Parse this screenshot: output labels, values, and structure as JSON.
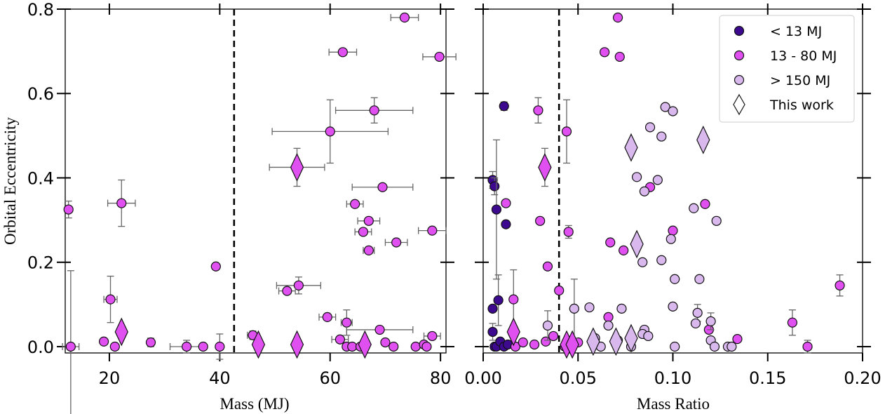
{
  "colors": {
    "lt13": "#3d0a8f",
    "mid": "#e050f0",
    "gt150": "#d9b8ee",
    "this_work": "#e050f0"
  },
  "chart_data": [
    {
      "type": "scatter",
      "xlabel": "Mass (MJ)",
      "ylabel": "Orbital Eccentricity",
      "xlim": [
        12,
        81
      ],
      "ylim": [
        -0.015,
        0.8
      ],
      "xticks": [
        20,
        40,
        60,
        80
      ],
      "yticks": [
        0.0,
        0.2,
        0.4,
        0.6,
        0.8
      ],
      "xtick_labels": [
        "20",
        "40",
        "60",
        "80"
      ],
      "ytick_labels": [
        "0.0",
        "0.2",
        "0.4",
        "0.6",
        "0.8"
      ],
      "vline": 42.6,
      "series": [
        {
          "name": "13 - 80 MJ",
          "marker": "circle",
          "color": "#e050f0",
          "points": [
            {
              "x": 12.6,
              "y": 0.325,
              "ey": 0.02
            },
            {
              "x": 13.0,
              "y": 0.0,
              "ey": 0.18,
              "ex": 1.5
            },
            {
              "x": 22.2,
              "y": 0.34,
              "ey": 0.055,
              "ex": 2.5
            },
            {
              "x": 20.2,
              "y": 0.112,
              "ey": 0.055,
              "ex": 1.2
            },
            {
              "x": 19.0,
              "y": 0.012
            },
            {
              "x": 21.0,
              "y": 0.0
            },
            {
              "x": 27.5,
              "y": 0.01,
              "ey": 0.01
            },
            {
              "x": 34.0,
              "y": 0.0,
              "ex": 3.0,
              "ey": 0.015
            },
            {
              "x": 37.0,
              "y": 0.0
            },
            {
              "x": 40.0,
              "y": 0.0,
              "ey": 0.03
            },
            {
              "x": 39.3,
              "y": 0.19
            },
            {
              "x": 73.5,
              "y": 0.78,
              "ex": 2.5
            },
            {
              "x": 62.3,
              "y": 0.698,
              "ex": 2.5
            },
            {
              "x": 79.8,
              "y": 0.687,
              "ex": 3.0
            },
            {
              "x": 68.0,
              "y": 0.56,
              "ey": 0.03,
              "ex": 7.0
            },
            {
              "x": 60.0,
              "y": 0.51,
              "ey": 0.075,
              "ex": 10.5
            },
            {
              "x": 69.5,
              "y": 0.378,
              "ex": 5.5
            },
            {
              "x": 64.5,
              "y": 0.338,
              "ex": 1.5
            },
            {
              "x": 67.0,
              "y": 0.298,
              "ex": 2.0
            },
            {
              "x": 66.0,
              "y": 0.272,
              "ex": 1.5
            },
            {
              "x": 78.5,
              "y": 0.275,
              "ex": 2.5
            },
            {
              "x": 72.0,
              "y": 0.247,
              "ex": 2.0
            },
            {
              "x": 67.0,
              "y": 0.228,
              "ex": 1.0
            },
            {
              "x": 54.3,
              "y": 0.145,
              "ey": 0.02,
              "ex": 4.0
            },
            {
              "x": 52.2,
              "y": 0.132,
              "ex": 1.5
            },
            {
              "x": 59.5,
              "y": 0.07,
              "ex": 1.5
            },
            {
              "x": 63.0,
              "y": 0.057,
              "ey": 0.03,
              "ex": 1.0
            },
            {
              "x": 46.0,
              "y": 0.027,
              "ey": 0.01,
              "ex": 1.0
            },
            {
              "x": 69.0,
              "y": 0.04,
              "ex": 6.0
            },
            {
              "x": 78.5,
              "y": 0.025,
              "ex": 1.5
            },
            {
              "x": 61.8,
              "y": 0.017,
              "ex": 1.5
            },
            {
              "x": 63.0,
              "y": 0.0
            },
            {
              "x": 64.0,
              "y": 0.0
            },
            {
              "x": 65.5,
              "y": 0.0
            },
            {
              "x": 70.0,
              "y": 0.01
            },
            {
              "x": 71.5,
              "y": 0.0
            },
            {
              "x": 75.5,
              "y": 0.0
            },
            {
              "x": 77.0,
              "y": 0.005
            },
            {
              "x": 77.5,
              "y": 0.0
            }
          ]
        },
        {
          "name": "This work",
          "marker": "diamond",
          "color": "#e050f0",
          "points": [
            {
              "x": 54.0,
              "y": 0.425,
              "ey": 0.045,
              "ex": 5.0
            },
            {
              "x": 22.2,
              "y": 0.035
            },
            {
              "x": 47.0,
              "y": 0.005
            },
            {
              "x": 54.0,
              "y": 0.005
            },
            {
              "x": 66.3,
              "y": 0.005
            }
          ]
        }
      ]
    },
    {
      "type": "scatter",
      "xlabel": "Mass Ratio",
      "ylabel": "",
      "xlim": [
        0.0,
        0.2
      ],
      "ylim": [
        -0.015,
        0.8
      ],
      "xticks": [
        0.0,
        0.05,
        0.1,
        0.15,
        0.2
      ],
      "yticks": [
        0.0,
        0.2,
        0.4,
        0.6,
        0.8
      ],
      "xtick_labels": [
        "0.00",
        "0.05",
        "0.10",
        "0.15",
        "0.20"
      ],
      "vline": 0.04,
      "legend": {
        "position": "top-right",
        "entries": [
          {
            "label": "< 13 MJ",
            "marker": "circle",
            "color": "#3d0a8f"
          },
          {
            "label": "13 - 80 MJ",
            "marker": "circle",
            "color": "#e050f0"
          },
          {
            "label": "> 150 MJ",
            "marker": "circle",
            "color": "#d9b8ee"
          },
          {
            "label": "This work",
            "marker": "diamond",
            "color": "#ffffff"
          }
        ]
      },
      "series": [
        {
          "name": "< 13 MJ",
          "marker": "circle",
          "color": "#3d0a8f",
          "points": [
            {
              "x": 0.005,
              "y": 0.395,
              "ey": 0.02
            },
            {
              "x": 0.006,
              "y": 0.38,
              "ey": 0.02
            },
            {
              "x": 0.007,
              "y": 0.325,
              "ey": 0.165
            },
            {
              "x": 0.011,
              "y": 0.57,
              "ey": 0.01
            },
            {
              "x": 0.012,
              "y": 0.29
            },
            {
              "x": 0.008,
              "y": 0.11,
              "ey": 0.06
            },
            {
              "x": 0.005,
              "y": 0.09
            },
            {
              "x": 0.005,
              "y": 0.035,
              "ey": 0.02
            },
            {
              "x": 0.006,
              "y": 0.0
            },
            {
              "x": 0.007,
              "y": 0.0
            },
            {
              "x": 0.009,
              "y": 0.012
            },
            {
              "x": 0.011,
              "y": 0.0
            },
            {
              "x": 0.013,
              "y": 0.005
            }
          ]
        },
        {
          "name": "13 - 80 MJ",
          "marker": "circle",
          "color": "#e050f0",
          "points": [
            {
              "x": 0.071,
              "y": 0.78
            },
            {
              "x": 0.064,
              "y": 0.698
            },
            {
              "x": 0.072,
              "y": 0.687
            },
            {
              "x": 0.029,
              "y": 0.56,
              "ey": 0.03
            },
            {
              "x": 0.044,
              "y": 0.51,
              "ey": 0.075
            },
            {
              "x": 0.012,
              "y": 0.34
            },
            {
              "x": 0.03,
              "y": 0.298
            },
            {
              "x": 0.045,
              "y": 0.272,
              "ey": 0.015
            },
            {
              "x": 0.067,
              "y": 0.247
            },
            {
              "x": 0.074,
              "y": 0.228
            },
            {
              "x": 0.034,
              "y": 0.19
            },
            {
              "x": 0.016,
              "y": 0.112,
              "ey": 0.07
            },
            {
              "x": 0.04,
              "y": 0.133
            },
            {
              "x": 0.066,
              "y": 0.07
            },
            {
              "x": 0.088,
              "y": 0.378
            },
            {
              "x": 0.1,
              "y": 0.275
            },
            {
              "x": 0.117,
              "y": 0.338
            },
            {
              "x": 0.119,
              "y": 0.04
            },
            {
              "x": 0.134,
              "y": 0.018
            },
            {
              "x": 0.163,
              "y": 0.057,
              "ey": 0.03
            },
            {
              "x": 0.171,
              "y": 0.0,
              "ey": 0.015
            },
            {
              "x": 0.188,
              "y": 0.145,
              "ey": 0.025
            },
            {
              "x": 0.017,
              "y": 0.0
            },
            {
              "x": 0.021,
              "y": 0.01
            },
            {
              "x": 0.027,
              "y": 0.005
            },
            {
              "x": 0.033,
              "y": 0.012
            },
            {
              "x": 0.037,
              "y": 0.025
            },
            {
              "x": 0.043,
              "y": 0.0
            },
            {
              "x": 0.05,
              "y": 0.01
            }
          ]
        },
        {
          "name": "> 150 MJ",
          "marker": "circle",
          "color": "#d9b8ee",
          "points": [
            {
              "x": 0.096,
              "y": 0.568
            },
            {
              "x": 0.1,
              "y": 0.558
            },
            {
              "x": 0.088,
              "y": 0.52
            },
            {
              "x": 0.094,
              "y": 0.498
            },
            {
              "x": 0.081,
              "y": 0.402
            },
            {
              "x": 0.092,
              "y": 0.395
            },
            {
              "x": 0.085,
              "y": 0.368
            },
            {
              "x": 0.111,
              "y": 0.328
            },
            {
              "x": 0.123,
              "y": 0.298
            },
            {
              "x": 0.099,
              "y": 0.255
            },
            {
              "x": 0.084,
              "y": 0.2
            },
            {
              "x": 0.094,
              "y": 0.205
            },
            {
              "x": 0.101,
              "y": 0.16
            },
            {
              "x": 0.114,
              "y": 0.16
            },
            {
              "x": 0.056,
              "y": 0.093
            },
            {
              "x": 0.073,
              "y": 0.09
            },
            {
              "x": 0.1,
              "y": 0.095
            },
            {
              "x": 0.048,
              "y": 0.09,
              "ey": 0.07
            },
            {
              "x": 0.113,
              "y": 0.08,
              "ey": 0.02
            },
            {
              "x": 0.112,
              "y": 0.055
            },
            {
              "x": 0.12,
              "y": 0.06,
              "ey": 0.02
            },
            {
              "x": 0.034,
              "y": 0.05,
              "ey": 0.035
            },
            {
              "x": 0.066,
              "y": 0.05
            },
            {
              "x": 0.085,
              "y": 0.04
            },
            {
              "x": 0.084,
              "y": 0.03
            },
            {
              "x": 0.087,
              "y": 0.025
            },
            {
              "x": 0.059,
              "y": 0.02
            },
            {
              "x": 0.071,
              "y": 0.015
            },
            {
              "x": 0.12,
              "y": 0.015
            },
            {
              "x": 0.101,
              "y": 0.0
            },
            {
              "x": 0.122,
              "y": 0.0
            },
            {
              "x": 0.129,
              "y": 0.0
            },
            {
              "x": 0.131,
              "y": 0.0
            },
            {
              "x": 0.045,
              "y": 0.005
            },
            {
              "x": 0.062,
              "y": 0.0
            },
            {
              "x": 0.078,
              "y": 0.0
            }
          ]
        },
        {
          "name": "This work",
          "marker": "diamond",
          "color": "#e050f0",
          "points": [
            {
              "x": 0.0325,
              "y": 0.425,
              "ey": 0.045
            },
            {
              "x": 0.016,
              "y": 0.035
            },
            {
              "x": 0.044,
              "y": 0.005
            },
            {
              "x": 0.047,
              "y": 0.005
            }
          ]
        },
        {
          "name": "This work (> 150 MJ)",
          "marker": "diamond",
          "color": "#d9b8ee",
          "points": [
            {
              "x": 0.078,
              "y": 0.472
            },
            {
              "x": 0.116,
              "y": 0.49
            },
            {
              "x": 0.081,
              "y": 0.243
            },
            {
              "x": 0.058,
              "y": 0.012
            },
            {
              "x": 0.07,
              "y": 0.012
            },
            {
              "x": 0.078,
              "y": 0.02
            }
          ]
        }
      ]
    }
  ]
}
